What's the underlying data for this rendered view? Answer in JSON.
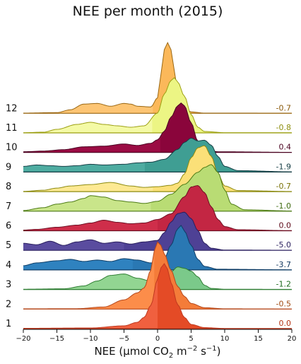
{
  "chart_data": {
    "type": "ridgeline",
    "title": "NEE per month (2015)",
    "xlabel": {
      "pre": "NEE (µmol CO",
      "sub": "2",
      "mid": " m",
      "sup1": "−2",
      "mid2": " s",
      "sup2": "−1",
      "post": ")"
    },
    "xlim": [
      -20,
      20
    ],
    "xticks": [
      -20,
      -15,
      -10,
      -5,
      0,
      5,
      10,
      15,
      20
    ],
    "xtick_labels": [
      "−20",
      "−15",
      "−10",
      "−5",
      "0",
      "5",
      "10",
      "15",
      "20"
    ],
    "series": [
      {
        "month": "1",
        "median_label": "0.0",
        "median": 0.0,
        "color": "#f0603f",
        "dark": "#e44b26",
        "edge": "#c0391f",
        "text_color": "#b53515",
        "density": [
          [
            -20,
            0.005
          ],
          [
            -10,
            0.01
          ],
          [
            -5,
            0.04
          ],
          [
            -3,
            0.09
          ],
          [
            -2,
            0.16
          ],
          [
            -1,
            0.33
          ],
          [
            0,
            0.7
          ],
          [
            0.5,
            0.86
          ],
          [
            1,
            0.92
          ],
          [
            1.5,
            0.84
          ],
          [
            2,
            0.65
          ],
          [
            3,
            0.34
          ],
          [
            4,
            0.16
          ],
          [
            5,
            0.06
          ],
          [
            7,
            0.015
          ],
          [
            10,
            0.003
          ],
          [
            20,
            0.002
          ]
        ]
      },
      {
        "month": "2",
        "median_label": "-0.5",
        "median": -0.5,
        "color": "#fc8d4a",
        "dark": "#f47c39",
        "edge": "#b5481c",
        "text_color": "#a04a12",
        "density": [
          [
            -20,
            0.004
          ],
          [
            -12,
            0.006
          ],
          [
            -8,
            0.03
          ],
          [
            -5,
            0.13
          ],
          [
            -3,
            0.23
          ],
          [
            -2,
            0.3
          ],
          [
            -1,
            0.55
          ],
          [
            -0.5,
            0.82
          ],
          [
            0,
            0.95
          ],
          [
            0.5,
            0.9
          ],
          [
            1,
            0.78
          ],
          [
            2,
            0.55
          ],
          [
            3,
            0.32
          ],
          [
            4,
            0.18
          ],
          [
            5,
            0.08
          ],
          [
            7,
            0.02
          ],
          [
            10,
            0.004
          ],
          [
            20,
            0.002
          ]
        ]
      },
      {
        "month": "3",
        "median_label": "-1.2",
        "median": -1.2,
        "color": "#92d592",
        "dark": "#7bc98a",
        "edge": "#2e7d32",
        "text_color": "#1c6a1c",
        "density": [
          [
            -20,
            0.004
          ],
          [
            -14,
            0.01
          ],
          [
            -11,
            0.05
          ],
          [
            -9,
            0.12
          ],
          [
            -7,
            0.2
          ],
          [
            -5,
            0.22
          ],
          [
            -3,
            0.16
          ],
          [
            -1,
            0.12
          ],
          [
            0,
            0.1
          ],
          [
            1,
            0.14
          ],
          [
            2,
            0.25
          ],
          [
            3,
            0.32
          ],
          [
            4,
            0.3
          ],
          [
            5,
            0.26
          ],
          [
            6,
            0.18
          ],
          [
            7,
            0.06
          ],
          [
            8,
            0.015
          ],
          [
            10,
            0.004
          ],
          [
            20,
            0.002
          ]
        ]
      },
      {
        "month": "4",
        "median_label": "-3.7",
        "median": -3.7,
        "color": "#2f82bf",
        "dark": "#2a78b3",
        "edge": "#0f3d66",
        "text_color": "#10355e",
        "density": [
          [
            -20,
            0.06
          ],
          [
            -18,
            0.1
          ],
          [
            -15,
            0.13
          ],
          [
            -13,
            0.15
          ],
          [
            -11,
            0.12
          ],
          [
            -9,
            0.14
          ],
          [
            -7,
            0.12
          ],
          [
            -5,
            0.16
          ],
          [
            -3,
            0.14
          ],
          [
            -1,
            0.1
          ],
          [
            0,
            0.09
          ],
          [
            1,
            0.16
          ],
          [
            2,
            0.35
          ],
          [
            3,
            0.58
          ],
          [
            3.5,
            0.63
          ],
          [
            4,
            0.55
          ],
          [
            5,
            0.35
          ],
          [
            6,
            0.15
          ],
          [
            7,
            0.05
          ],
          [
            9,
            0.01
          ],
          [
            20,
            0.002
          ]
        ]
      },
      {
        "month": "5",
        "median_label": "-5.0",
        "median": -5.0,
        "color": "#5a4c9f",
        "dark": "#4e4195",
        "edge": "#2a1f5e",
        "text_color": "#2a1f5e",
        "density": [
          [
            -20,
            0.1
          ],
          [
            -18,
            0.08
          ],
          [
            -16,
            0.13
          ],
          [
            -14,
            0.07
          ],
          [
            -12,
            0.12
          ],
          [
            -10,
            0.15
          ],
          [
            -8,
            0.1
          ],
          [
            -6,
            0.12
          ],
          [
            -4,
            0.09
          ],
          [
            -2,
            0.12
          ],
          [
            0,
            0.14
          ],
          [
            1,
            0.25
          ],
          [
            2,
            0.4
          ],
          [
            3,
            0.52
          ],
          [
            4,
            0.54
          ],
          [
            5,
            0.45
          ],
          [
            6,
            0.28
          ],
          [
            7,
            0.1
          ],
          [
            8,
            0.03
          ],
          [
            10,
            0.005
          ],
          [
            20,
            0.002
          ]
        ]
      },
      {
        "month": "6",
        "median_label": "0.0",
        "median": 0.0,
        "color": "#cf2e4a",
        "dark": "#c32643",
        "edge": "#6e0f22",
        "text_color": "#5e0a1a",
        "density": [
          [
            -20,
            0.01
          ],
          [
            -18,
            0.02
          ],
          [
            -15,
            0.05
          ],
          [
            -12,
            0.08
          ],
          [
            -10,
            0.11
          ],
          [
            -8,
            0.15
          ],
          [
            -6,
            0.12
          ],
          [
            -4,
            0.1
          ],
          [
            -2,
            0.11
          ],
          [
            0,
            0.16
          ],
          [
            2,
            0.24
          ],
          [
            4,
            0.48
          ],
          [
            5,
            0.62
          ],
          [
            6,
            0.64
          ],
          [
            7,
            0.54
          ],
          [
            8,
            0.34
          ],
          [
            9,
            0.16
          ],
          [
            10,
            0.06
          ],
          [
            12,
            0.015
          ],
          [
            20,
            0.002
          ]
        ]
      },
      {
        "month": "7",
        "median_label": "-1.0",
        "median": -1.0,
        "color": "#c9e58a",
        "dark": "#b9dc74",
        "edge": "#4c7a14",
        "text_color": "#3f6a10",
        "density": [
          [
            -20,
            0.01
          ],
          [
            -17,
            0.05
          ],
          [
            -15,
            0.1
          ],
          [
            -13,
            0.13
          ],
          [
            -11,
            0.18
          ],
          [
            -10,
            0.22
          ],
          [
            -8,
            0.2
          ],
          [
            -6,
            0.15
          ],
          [
            -4,
            0.13
          ],
          [
            -2,
            0.11
          ],
          [
            0,
            0.14
          ],
          [
            2,
            0.24
          ],
          [
            4,
            0.38
          ],
          [
            6,
            0.55
          ],
          [
            7,
            0.62
          ],
          [
            8,
            0.66
          ],
          [
            9,
            0.55
          ],
          [
            10,
            0.3
          ],
          [
            11,
            0.1
          ],
          [
            13,
            0.02
          ],
          [
            20,
            0.003
          ]
        ]
      },
      {
        "month": "8",
        "median_label": "-0.7",
        "median": -0.7,
        "color": "#fde993",
        "dark": "#fbe078",
        "edge": "#8c8a10",
        "text_color": "#7a7208",
        "density": [
          [
            -20,
            0.003
          ],
          [
            -17,
            0.02
          ],
          [
            -15,
            0.05
          ],
          [
            -13,
            0.08
          ],
          [
            -10,
            0.1
          ],
          [
            -7,
            0.13
          ],
          [
            -4,
            0.08
          ],
          [
            -2,
            0.06
          ],
          [
            0,
            0.07
          ],
          [
            2,
            0.09
          ],
          [
            3,
            0.12
          ],
          [
            4,
            0.25
          ],
          [
            5,
            0.48
          ],
          [
            6,
            0.62
          ],
          [
            7,
            0.65
          ],
          [
            8,
            0.5
          ],
          [
            9,
            0.25
          ],
          [
            10,
            0.08
          ],
          [
            12,
            0.015
          ],
          [
            20,
            0.002
          ]
        ]
      },
      {
        "month": "9",
        "median_label": "-1.9",
        "median": -1.9,
        "color": "#4eaca1",
        "dark": "#3f9e93",
        "edge": "#163e45",
        "text_color": "#163e45",
        "density": [
          [
            -20,
            0.08
          ],
          [
            -18,
            0.1
          ],
          [
            -16,
            0.09
          ],
          [
            -14,
            0.08
          ],
          [
            -12,
            0.09
          ],
          [
            -10,
            0.11
          ],
          [
            -8,
            0.1
          ],
          [
            -5,
            0.11
          ],
          [
            -3,
            0.13
          ],
          [
            -1,
            0.14
          ],
          [
            1,
            0.18
          ],
          [
            3,
            0.32
          ],
          [
            4,
            0.42
          ],
          [
            5,
            0.48
          ],
          [
            6,
            0.44
          ],
          [
            7,
            0.45
          ],
          [
            8,
            0.38
          ],
          [
            9,
            0.22
          ],
          [
            10,
            0.08
          ],
          [
            12,
            0.02
          ],
          [
            20,
            0.003
          ]
        ]
      },
      {
        "month": "10",
        "median_label": "0.4",
        "median": 0.4,
        "color": "#9b0c44",
        "dark": "#8a053b",
        "edge": "#4a0220",
        "text_color": "#4a0220",
        "density": [
          [
            -20,
            0.01
          ],
          [
            -17,
            0.02
          ],
          [
            -14,
            0.04
          ],
          [
            -11,
            0.08
          ],
          [
            -8,
            0.09
          ],
          [
            -5,
            0.12
          ],
          [
            -3,
            0.1
          ],
          [
            -1,
            0.13
          ],
          [
            0,
            0.18
          ],
          [
            1,
            0.3
          ],
          [
            2,
            0.5
          ],
          [
            3,
            0.66
          ],
          [
            3.5,
            0.7
          ],
          [
            4,
            0.66
          ],
          [
            5,
            0.42
          ],
          [
            6,
            0.16
          ],
          [
            7,
            0.05
          ],
          [
            9,
            0.01
          ],
          [
            20,
            0.002
          ]
        ]
      },
      {
        "month": "11",
        "median_label": "-0.8",
        "median": -0.8,
        "color": "#f4faa6",
        "dark": "#ecf584",
        "edge": "#9c9f12",
        "text_color": "#8e8f10",
        "density": [
          [
            -20,
            0.003
          ],
          [
            -17,
            0.01
          ],
          [
            -15,
            0.05
          ],
          [
            -12,
            0.12
          ],
          [
            -10,
            0.15
          ],
          [
            -8,
            0.12
          ],
          [
            -6,
            0.1
          ],
          [
            -4,
            0.08
          ],
          [
            -2,
            0.1
          ],
          [
            0,
            0.28
          ],
          [
            1,
            0.55
          ],
          [
            2,
            0.74
          ],
          [
            2.5,
            0.78
          ],
          [
            3,
            0.72
          ],
          [
            4,
            0.52
          ],
          [
            5,
            0.26
          ],
          [
            6,
            0.08
          ],
          [
            7,
            0.02
          ],
          [
            10,
            0.003
          ],
          [
            20,
            0.002
          ]
        ]
      },
      {
        "month": "12",
        "median_label": "-0.7",
        "median": -0.7,
        "color": "#fdc574",
        "dark": "#fbb85a",
        "edge": "#9a6712",
        "text_color": "#8a5a0c",
        "density": [
          [
            -20,
            0.003
          ],
          [
            -15,
            0.01
          ],
          [
            -13,
            0.05
          ],
          [
            -11,
            0.13
          ],
          [
            -9,
            0.14
          ],
          [
            -7,
            0.1
          ],
          [
            -5,
            0.14
          ],
          [
            -4,
            0.13
          ],
          [
            -3,
            0.1
          ],
          [
            -1,
            0.09
          ],
          [
            0,
            0.22
          ],
          [
            0.5,
            0.55
          ],
          [
            1,
            0.9
          ],
          [
            1.5,
            1.0
          ],
          [
            2,
            0.9
          ],
          [
            2.5,
            0.6
          ],
          [
            3,
            0.3
          ],
          [
            4,
            0.08
          ],
          [
            5,
            0.02
          ],
          [
            7,
            0.003
          ],
          [
            20,
            0.002
          ]
        ]
      }
    ]
  }
}
